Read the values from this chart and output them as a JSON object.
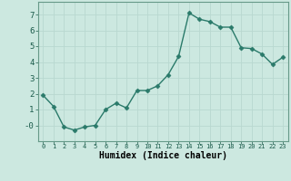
{
  "x": [
    0,
    1,
    2,
    3,
    4,
    5,
    6,
    7,
    8,
    9,
    10,
    11,
    12,
    13,
    14,
    15,
    16,
    17,
    18,
    19,
    20,
    21,
    22,
    23
  ],
  "y": [
    1.9,
    1.2,
    -0.1,
    -0.3,
    -0.1,
    0.0,
    1.0,
    1.4,
    1.1,
    2.2,
    2.2,
    2.5,
    3.2,
    4.35,
    7.1,
    6.7,
    6.55,
    6.2,
    6.2,
    4.9,
    4.85,
    4.5,
    3.85,
    4.3
  ],
  "bg_color": "#cce8e0",
  "line_color": "#2a7a6a",
  "marker_color": "#2a7a6a",
  "xlabel": "Humidex (Indice chaleur)",
  "ylim": [
    -1.0,
    7.8
  ],
  "xlim": [
    -0.5,
    23.5
  ],
  "yticks": [
    0,
    1,
    2,
    3,
    4,
    5,
    6,
    7
  ],
  "ytick_labels": [
    "-0",
    "1",
    "2",
    "3",
    "4",
    "5",
    "6",
    "7"
  ],
  "xticks": [
    0,
    1,
    2,
    3,
    4,
    5,
    6,
    7,
    8,
    9,
    10,
    11,
    12,
    13,
    14,
    15,
    16,
    17,
    18,
    19,
    20,
    21,
    22,
    23
  ],
  "grid_color": "#b8d8d0",
  "marker_size": 2.5,
  "line_width": 1.0,
  "xtick_fontsize": 5.0,
  "ytick_fontsize": 6.5,
  "xlabel_fontsize": 7.0
}
